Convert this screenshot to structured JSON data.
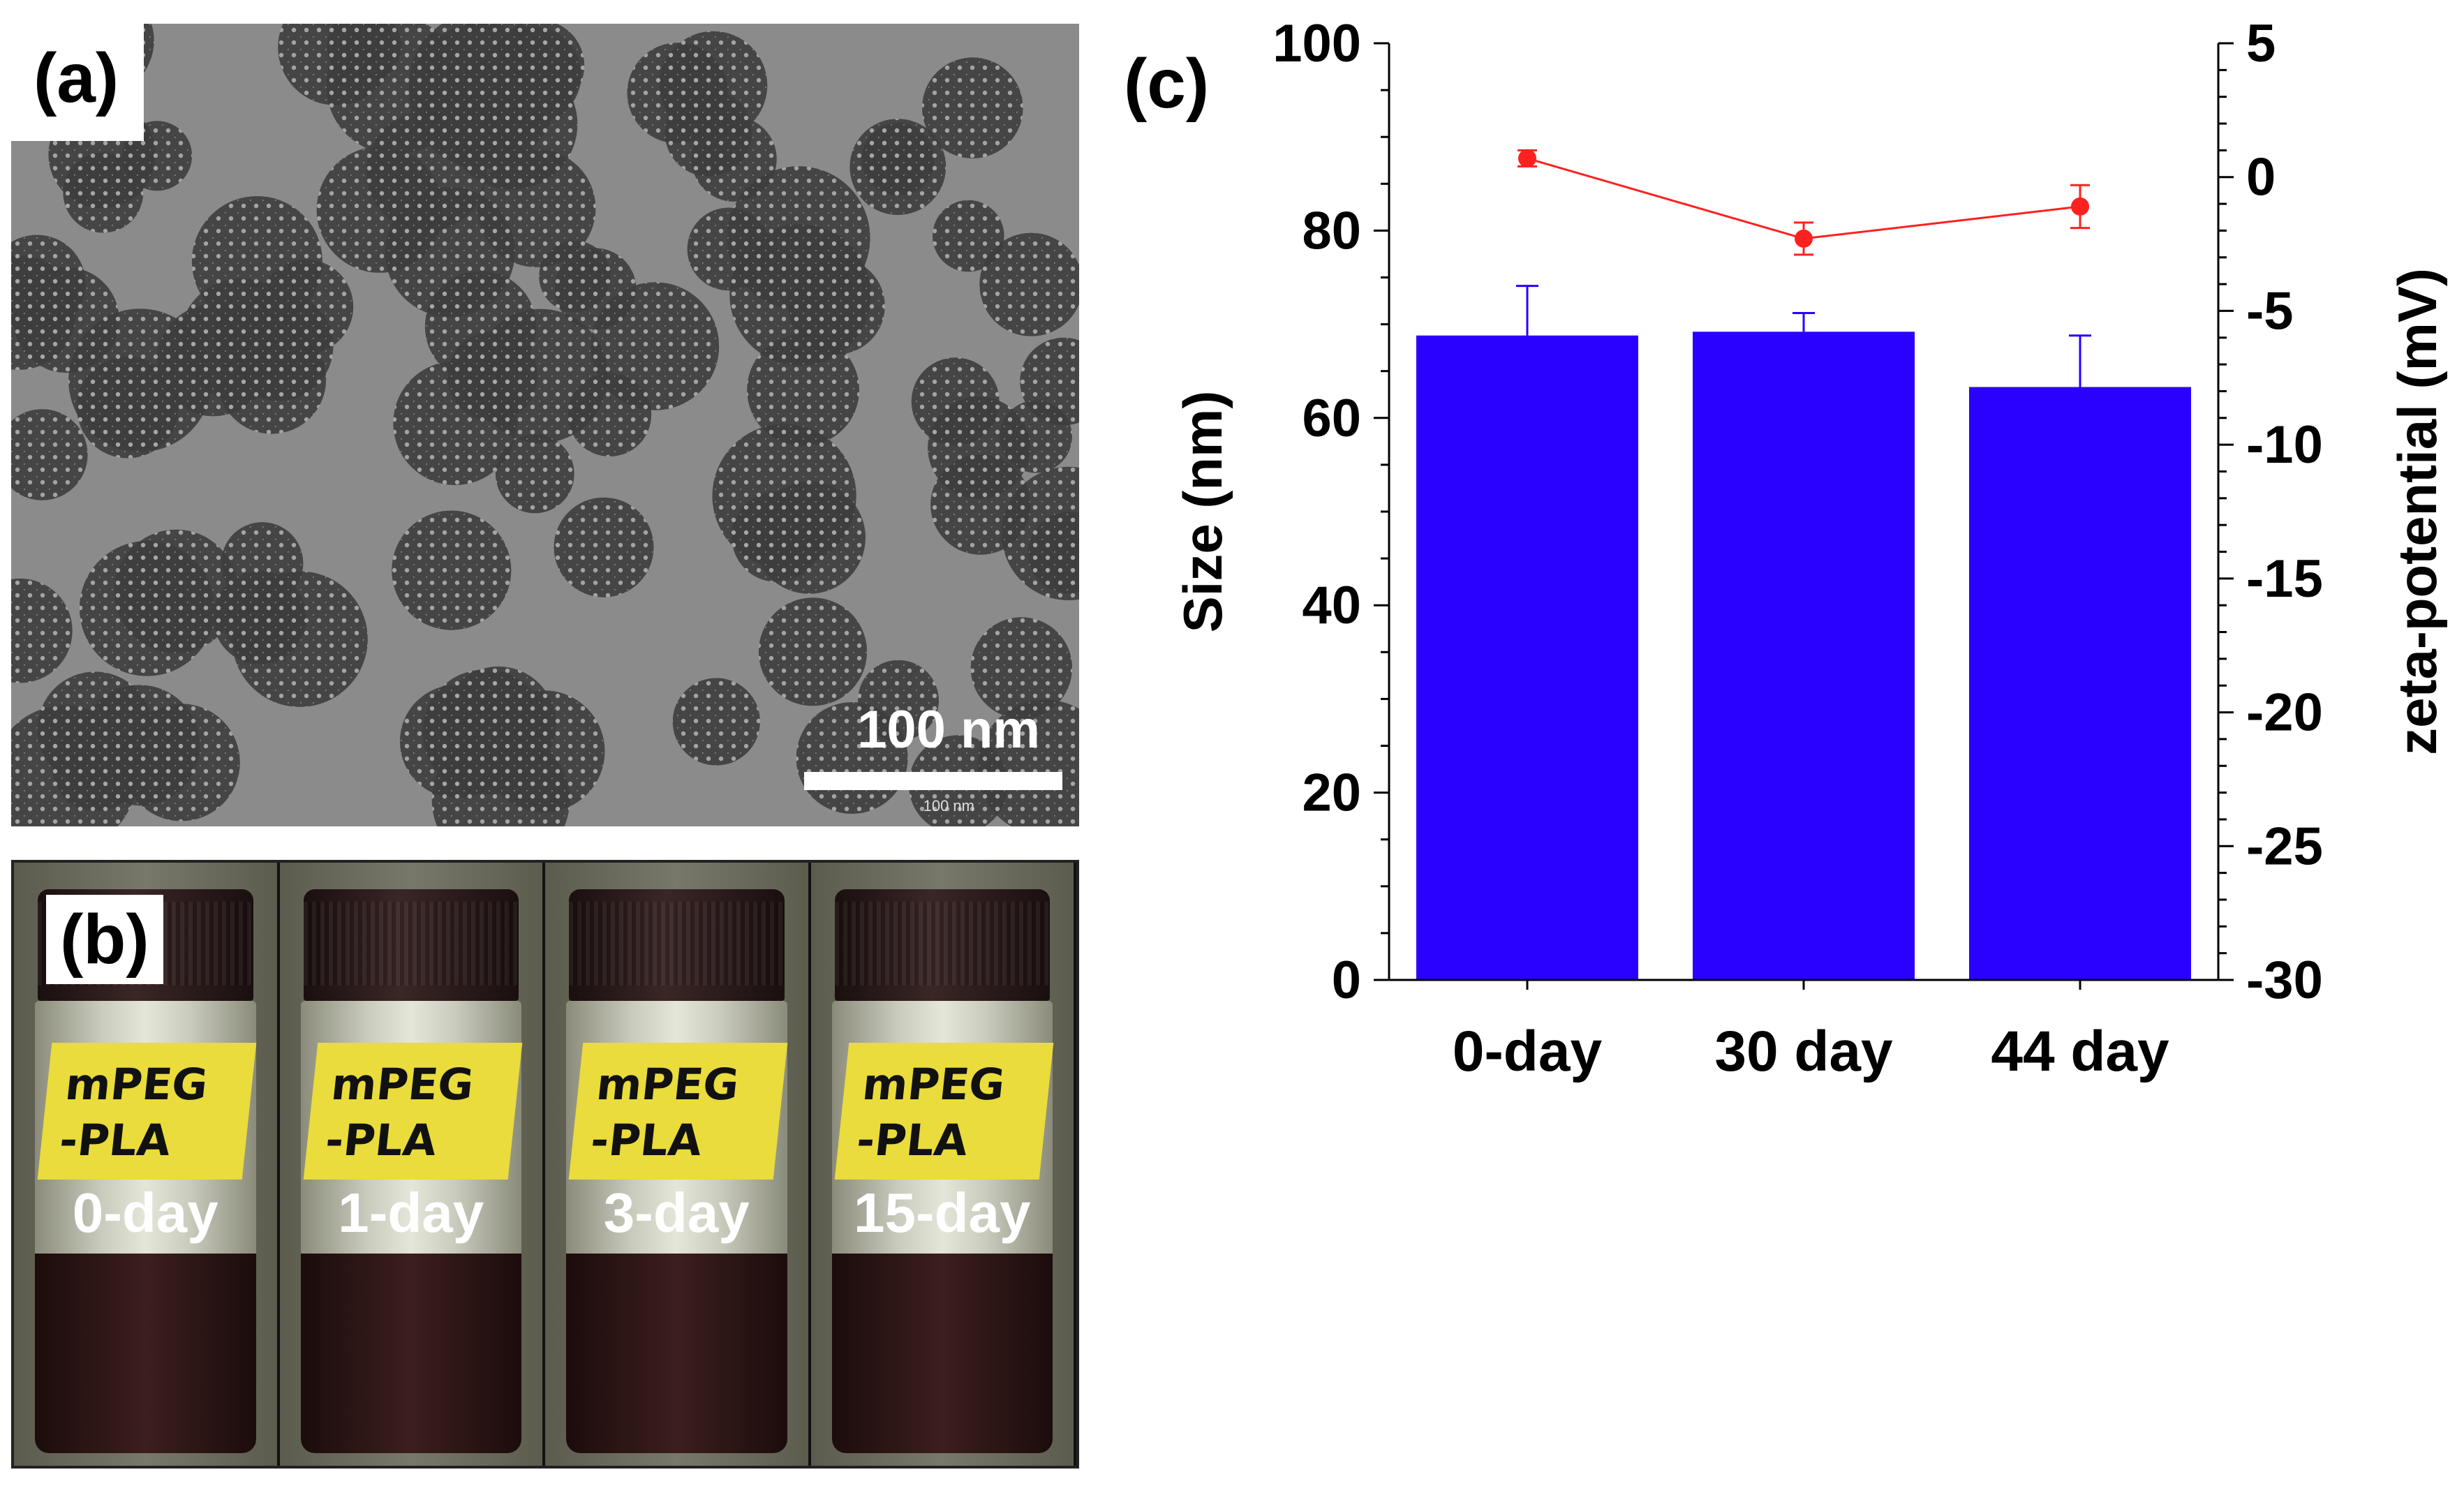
{
  "panel_a": {
    "label": "(a)",
    "scale_bar_label": "100 nm",
    "scale_bar_small_label": "100 nm"
  },
  "panel_b": {
    "label": "(b)",
    "vials": [
      {
        "tag_line1": "mPEG",
        "tag_line2": "-PLA",
        "day": "0-day"
      },
      {
        "tag_line1": "mPEG",
        "tag_line2": "-PLA",
        "day": "1-day"
      },
      {
        "tag_line1": "mPEG",
        "tag_line2": "-PLA",
        "day": "3-day"
      },
      {
        "tag_line1": "mPEG",
        "tag_line2": "-PLA",
        "day": "15-day"
      }
    ]
  },
  "panel_c": {
    "label": "(c)"
  },
  "colors": {
    "bar": "#2a00ff",
    "line": "#ff2020",
    "axis": "#000000"
  },
  "chart_data": {
    "type": "bar",
    "categories": [
      "0-day",
      "30 day",
      "44 day"
    ],
    "series": [
      {
        "name": "Size (nm)",
        "type": "bar",
        "axis": "left",
        "values": [
          68.8,
          69.2,
          63.3
        ],
        "errors": [
          5.3,
          2.0,
          5.5
        ]
      },
      {
        "name": "zeta-potential (mV)",
        "type": "line",
        "axis": "right",
        "values": [
          0.7,
          -2.3,
          -1.1
        ],
        "errors": [
          0.3,
          0.6,
          0.8
        ]
      }
    ],
    "ylabel": "Size (nm)",
    "ylim": [
      0,
      100
    ],
    "yticks": [
      "0",
      "20",
      "40",
      "60",
      "80",
      "100"
    ],
    "y2label": "zeta-potential (mV)",
    "y2lim": [
      -30,
      5
    ],
    "y2ticks": [
      "-30",
      "-25",
      "-20",
      "-15",
      "-10",
      "-5",
      "0",
      "5"
    ]
  }
}
